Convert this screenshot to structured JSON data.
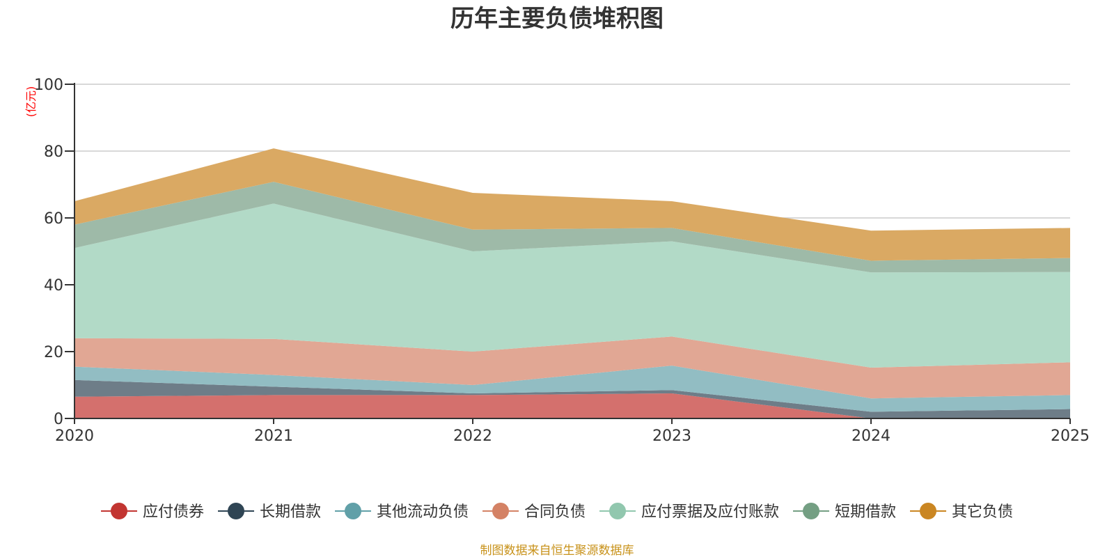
{
  "chart_data": {
    "type": "area",
    "stacked": true,
    "title": "历年主要负债堆积图",
    "unit_label": "(亿元)",
    "source_note": "制图数据来自恒生聚源数据库",
    "x": [
      "2020",
      "2021",
      "2022",
      "2023",
      "2024",
      "2025"
    ],
    "ylim": [
      0,
      100
    ],
    "yticks": [
      0,
      20,
      40,
      60,
      80,
      100
    ],
    "grid": true,
    "legend_position": "bottom",
    "series": [
      {
        "name": "应付债券",
        "color": "#c23531",
        "area_color": "#d4706d",
        "values": [
          6.5,
          7.0,
          7.0,
          7.5,
          0.0,
          0.0
        ]
      },
      {
        "name": "长期借款",
        "color": "#2f4554",
        "area_color": "#6e7d88",
        "values": [
          5.0,
          2.5,
          0.5,
          1.0,
          2.0,
          2.8
        ]
      },
      {
        "name": "其他流动负债",
        "color": "#61a0a8",
        "area_color": "#92bdc3",
        "values": [
          4.0,
          3.5,
          2.5,
          7.3,
          4.0,
          4.2
        ]
      },
      {
        "name": "合同负债",
        "color": "#d48265",
        "area_color": "#e1a794",
        "values": [
          8.5,
          10.8,
          10.0,
          8.7,
          9.2,
          9.8
        ]
      },
      {
        "name": "应付票据及应付账款",
        "color": "#91c7ae",
        "area_color": "#b2dac7",
        "values": [
          27.0,
          40.5,
          30.0,
          28.5,
          28.5,
          27.0
        ]
      },
      {
        "name": "短期借款",
        "color": "#749f83",
        "area_color": "#9ebaa8",
        "values": [
          7.0,
          6.5,
          6.5,
          4.0,
          3.5,
          4.2
        ]
      },
      {
        "name": "其它负债",
        "color": "#ca8622",
        "area_color": "#daa963",
        "values": [
          7.0,
          10.0,
          11.0,
          8.0,
          9.0,
          9.0
        ]
      }
    ]
  }
}
